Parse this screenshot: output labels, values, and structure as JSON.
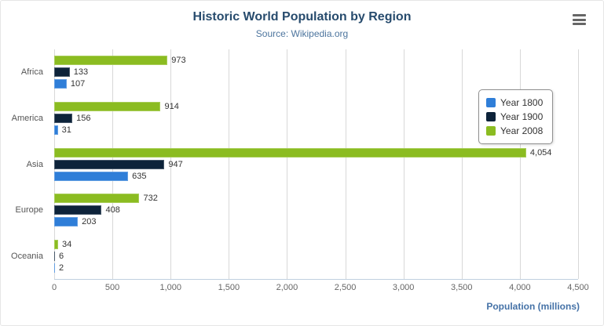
{
  "header": {
    "title": "Historic World Population by Region",
    "subtitle": "Source: Wikipedia.org"
  },
  "chart_data": {
    "type": "bar",
    "title": "Historic World Population by Region",
    "subtitle": "Source: Wikipedia.org",
    "categories": [
      "Africa",
      "America",
      "Asia",
      "Europe",
      "Oceania"
    ],
    "series": [
      {
        "name": "Year 1800",
        "color": "#2f7ed8",
        "values": [
          107,
          31,
          635,
          203,
          2
        ]
      },
      {
        "name": "Year 1900",
        "color": "#0d233a",
        "values": [
          133,
          156,
          947,
          408,
          6
        ]
      },
      {
        "name": "Year 2008",
        "color": "#8bbc21",
        "values": [
          973,
          914,
          4054,
          732,
          34
        ]
      }
    ],
    "display_order_top_to_bottom": [
      "Year 2008",
      "Year 1900",
      "Year 1800"
    ],
    "xlabel": "Population (millions)",
    "xlim": [
      0,
      4500
    ],
    "xticks": [
      0,
      500,
      1000,
      1500,
      2000,
      2500,
      3000,
      3500,
      4000,
      4500
    ],
    "xtick_labels": [
      "0",
      "500",
      "1,000",
      "1,500",
      "2,000",
      "2,500",
      "3,000",
      "3,500",
      "4,000",
      "4,500"
    ],
    "grid": true,
    "legend_position": "right"
  },
  "legend": {
    "items": [
      {
        "label": "Year 1800",
        "color": "#2f7ed8"
      },
      {
        "label": "Year 1900",
        "color": "#0d233a"
      },
      {
        "label": "Year 2008",
        "color": "#8bbc21"
      }
    ]
  },
  "colors": {
    "title": "#274b6d",
    "subtitle": "#4d759e",
    "axis_title": "#4572a7",
    "gridline": "#d8d8d8",
    "tick_text": "#666666"
  }
}
